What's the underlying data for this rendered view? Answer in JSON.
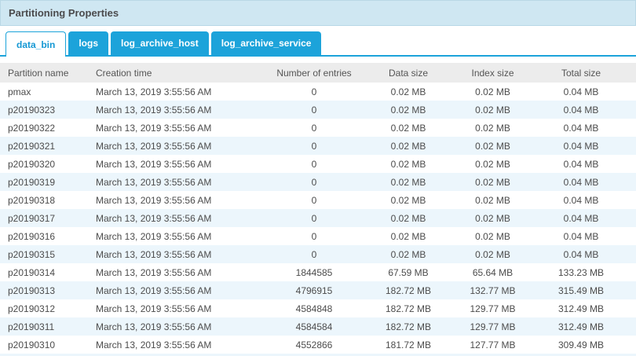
{
  "panel": {
    "title": "Partitioning Properties"
  },
  "tabs": [
    {
      "label": "data_bin",
      "active": true
    },
    {
      "label": "logs",
      "active": false
    },
    {
      "label": "log_archive_host",
      "active": false
    },
    {
      "label": "log_archive_service",
      "active": false
    }
  ],
  "table": {
    "columns": [
      "Partition name",
      "Creation time",
      "Number of entries",
      "Data size",
      "Index size",
      "Total size"
    ],
    "rows": [
      [
        "pmax",
        "March 13, 2019 3:55:56 AM",
        "0",
        "0.02 MB",
        "0.02 MB",
        "0.04 MB"
      ],
      [
        "p20190323",
        "March 13, 2019 3:55:56 AM",
        "0",
        "0.02 MB",
        "0.02 MB",
        "0.04 MB"
      ],
      [
        "p20190322",
        "March 13, 2019 3:55:56 AM",
        "0",
        "0.02 MB",
        "0.02 MB",
        "0.04 MB"
      ],
      [
        "p20190321",
        "March 13, 2019 3:55:56 AM",
        "0",
        "0.02 MB",
        "0.02 MB",
        "0.04 MB"
      ],
      [
        "p20190320",
        "March 13, 2019 3:55:56 AM",
        "0",
        "0.02 MB",
        "0.02 MB",
        "0.04 MB"
      ],
      [
        "p20190319",
        "March 13, 2019 3:55:56 AM",
        "0",
        "0.02 MB",
        "0.02 MB",
        "0.04 MB"
      ],
      [
        "p20190318",
        "March 13, 2019 3:55:56 AM",
        "0",
        "0.02 MB",
        "0.02 MB",
        "0.04 MB"
      ],
      [
        "p20190317",
        "March 13, 2019 3:55:56 AM",
        "0",
        "0.02 MB",
        "0.02 MB",
        "0.04 MB"
      ],
      [
        "p20190316",
        "March 13, 2019 3:55:56 AM",
        "0",
        "0.02 MB",
        "0.02 MB",
        "0.04 MB"
      ],
      [
        "p20190315",
        "March 13, 2019 3:55:56 AM",
        "0",
        "0.02 MB",
        "0.02 MB",
        "0.04 MB"
      ],
      [
        "p20190314",
        "March 13, 2019 3:55:56 AM",
        "1844585",
        "67.59 MB",
        "65.64 MB",
        "133.23 MB"
      ],
      [
        "p20190313",
        "March 13, 2019 3:55:56 AM",
        "4796915",
        "182.72 MB",
        "132.77 MB",
        "315.49 MB"
      ],
      [
        "p20190312",
        "March 13, 2019 3:55:56 AM",
        "4584848",
        "182.72 MB",
        "129.77 MB",
        "312.49 MB"
      ],
      [
        "p20190311",
        "March 13, 2019 3:55:56 AM",
        "4584584",
        "182.72 MB",
        "129.77 MB",
        "312.49 MB"
      ],
      [
        "p20190310",
        "March 13, 2019 3:55:56 AM",
        "4552866",
        "181.72 MB",
        "127.77 MB",
        "309.49 MB"
      ]
    ]
  },
  "colors": {
    "accent_blue": "#1ca3da",
    "active_tab_text": "#1598d4",
    "title_bar_bg": "#cfe7f2",
    "header_row_bg": "#ececec",
    "alt_row_bg": "#ecf6fc",
    "text": "#4c4c4c"
  }
}
